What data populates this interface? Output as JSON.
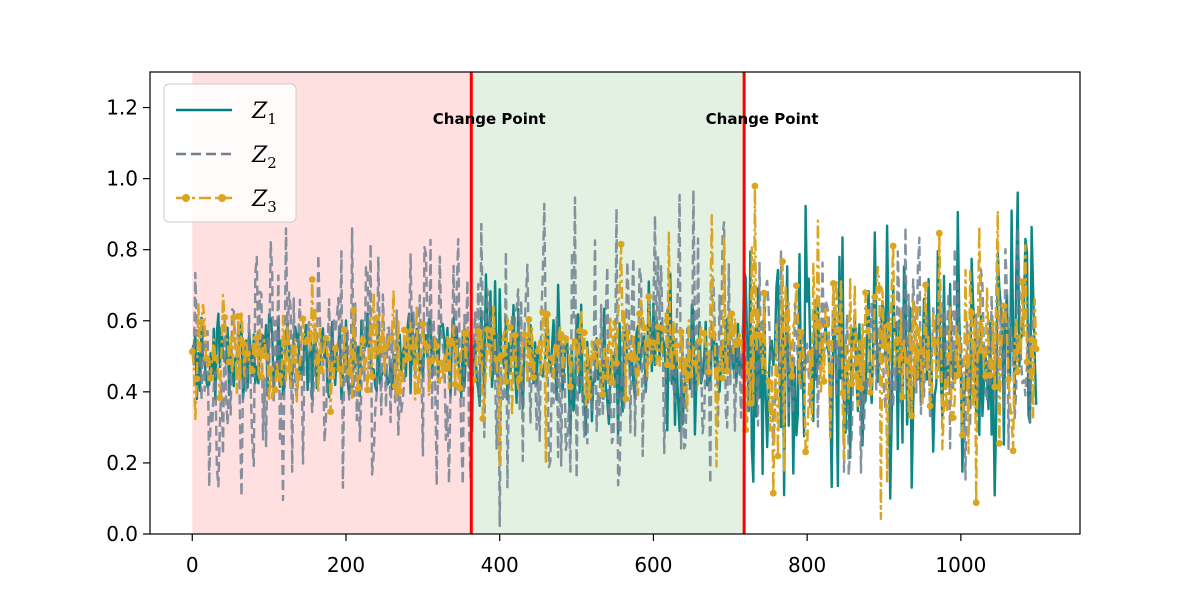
{
  "chart_data": {
    "type": "line",
    "x_range": [
      0,
      1099
    ],
    "xlim": [
      -55,
      1155
    ],
    "ylim": [
      0.0,
      1.3
    ],
    "xticks": [
      0,
      200,
      400,
      600,
      800,
      1000
    ],
    "xtick_labels": [
      "0",
      "200",
      "400",
      "600",
      "800",
      "1000"
    ],
    "yticks": [
      0.0,
      0.2,
      0.4,
      0.6,
      0.8,
      1.0,
      1.2
    ],
    "ytick_labels": [
      "0.0",
      "0.2",
      "0.4",
      "0.6",
      "0.8",
      "1.0",
      "1.2"
    ],
    "grid": false,
    "legend_position": "top-left",
    "change_points": [
      {
        "x": 363,
        "label": "Change Point"
      },
      {
        "x": 718,
        "label": "Change Point"
      }
    ],
    "shaded_regions": [
      {
        "from": 0,
        "to": 363,
        "color": "#ffcccc"
      },
      {
        "from": 363,
        "to": 718,
        "color": "#cfe8cf"
      }
    ],
    "change_line_color": "#ff0000",
    "series": [
      {
        "name": "Z",
        "subscript": "1",
        "color": "#008080",
        "style": "solid",
        "segments": [
          {
            "from": 0,
            "to": 363,
            "mean": 0.5,
            "amplitude": 0.1,
            "min": 0.38,
            "max": 0.62
          },
          {
            "from": 363,
            "to": 718,
            "mean": 0.5,
            "amplitude": 0.12,
            "min": 0.28,
            "max": 0.76
          },
          {
            "from": 718,
            "to": 1099,
            "mean": 0.52,
            "amplitude": 0.22,
            "min": 0.0,
            "max": 1.0
          }
        ]
      },
      {
        "name": "Z",
        "subscript": "2",
        "color": "#708090",
        "style": "dashed",
        "segments": [
          {
            "from": 0,
            "to": 363,
            "mean": 0.48,
            "amplitude": 0.22,
            "min": 0.05,
            "max": 0.86
          },
          {
            "from": 363,
            "to": 718,
            "mean": 0.5,
            "amplitude": 0.22,
            "min": 0.0,
            "max": 0.98
          },
          {
            "from": 718,
            "to": 1099,
            "mean": 0.52,
            "amplitude": 0.2,
            "min": 0.0,
            "max": 0.94
          }
        ]
      },
      {
        "name": "Z",
        "subscript": "3",
        "color": "#daa520",
        "style": "dash-dot with circle markers",
        "segments": [
          {
            "from": 0,
            "to": 363,
            "mean": 0.5,
            "amplitude": 0.09,
            "min": 0.32,
            "max": 0.72
          },
          {
            "from": 363,
            "to": 718,
            "mean": 0.5,
            "amplitude": 0.11,
            "min": 0.19,
            "max": 0.92
          },
          {
            "from": 718,
            "to": 1099,
            "mean": 0.52,
            "amplitude": 0.21,
            "min": 0.0,
            "max": 1.0
          }
        ]
      }
    ]
  }
}
